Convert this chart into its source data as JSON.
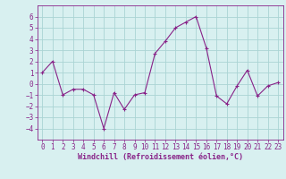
{
  "x": [
    0,
    1,
    2,
    3,
    4,
    5,
    6,
    7,
    8,
    9,
    10,
    11,
    12,
    13,
    14,
    15,
    16,
    17,
    18,
    19,
    20,
    21,
    22,
    23
  ],
  "y": [
    1,
    2,
    -1,
    -0.5,
    -0.5,
    -1,
    -4,
    -0.8,
    -2.3,
    -1,
    -0.8,
    2.7,
    3.8,
    5.0,
    5.5,
    6.0,
    3.2,
    -1.1,
    -1.8,
    -0.2,
    1.2,
    -1.1,
    -0.2,
    0.1
  ],
  "line_color": "#882288",
  "marker": "+",
  "marker_size": 3,
  "bg_color": "#d8f0f0",
  "grid_color": "#aad4d4",
  "tick_color": "#882288",
  "label_color": "#882288",
  "xlabel": "Windchill (Refroidissement éolien,°C)",
  "ylim": [
    -5,
    7
  ],
  "xlim": [
    -0.5,
    23.5
  ],
  "yticks": [
    -4,
    -3,
    -2,
    -1,
    0,
    1,
    2,
    3,
    4,
    5,
    6
  ],
  "xticks": [
    0,
    1,
    2,
    3,
    4,
    5,
    6,
    7,
    8,
    9,
    10,
    11,
    12,
    13,
    14,
    15,
    16,
    17,
    18,
    19,
    20,
    21,
    22,
    23
  ],
  "tick_fontsize": 5.5,
  "xlabel_fontsize": 6.0,
  "linewidth": 0.8,
  "markeredgewidth": 0.8
}
